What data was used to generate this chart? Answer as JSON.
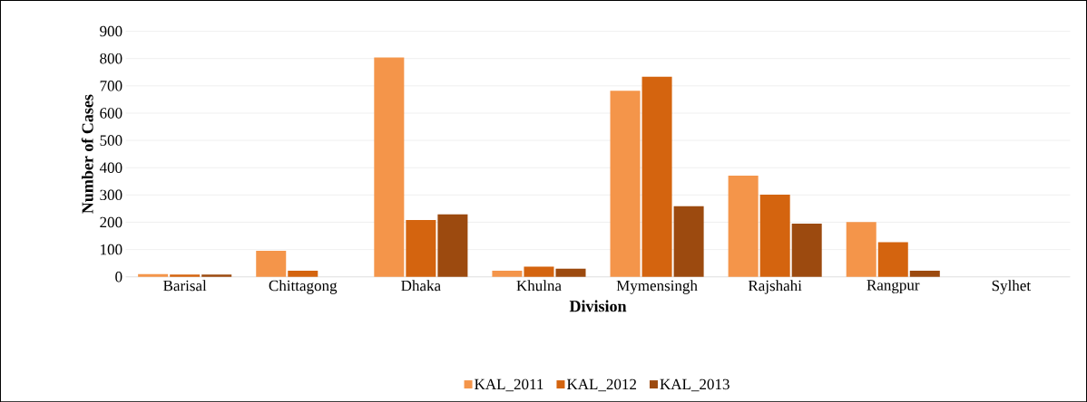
{
  "chart_data": {
    "type": "bar",
    "xlabel": "Division",
    "ylabel": "Number of Cases",
    "categories": [
      "Barisal",
      "Chittagong",
      "Dhaka",
      "Khulna",
      "Mymensingh",
      "Rajshahi",
      "Rangpur",
      "Sylhet"
    ],
    "series": [
      {
        "name": "KAL_2011",
        "color": "#f4954a",
        "values": [
          10,
          95,
          804,
          22,
          682,
          371,
          201,
          0
        ]
      },
      {
        "name": "KAL_2012",
        "color": "#d4640f",
        "values": [
          8,
          22,
          208,
          37,
          733,
          301,
          127,
          0
        ]
      },
      {
        "name": "KAL_2013",
        "color": "#9c4a0f",
        "values": [
          8,
          0,
          229,
          30,
          259,
          195,
          22,
          0
        ]
      }
    ],
    "ylim": [
      0,
      900
    ],
    "yticks": [
      0,
      100,
      200,
      300,
      400,
      500,
      600,
      700,
      800,
      900
    ],
    "grid": "y",
    "legend": "bottom"
  }
}
